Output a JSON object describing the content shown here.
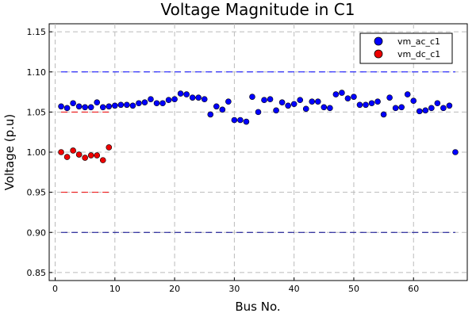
{
  "chart_data": {
    "type": "scatter",
    "title": "Voltage Magnitude in C1",
    "xlabel": "Bus No.",
    "ylabel": "Voltage (p.u)",
    "xlim": [
      -1,
      69
    ],
    "ylim": [
      0.84,
      1.16
    ],
    "xticks": [
      "0",
      "10",
      "20",
      "30",
      "40",
      "50",
      "60"
    ],
    "xtick_values": [
      0,
      10,
      20,
      30,
      40,
      50,
      60
    ],
    "yticks": [
      "0.85",
      "0.90",
      "0.95",
      "1.00",
      "1.05",
      "1.10",
      "1.15"
    ],
    "ytick_values": [
      0.85,
      0.9,
      0.95,
      1.0,
      1.05,
      1.1,
      1.15
    ],
    "grid": true,
    "legend_position": "top-right",
    "series": [
      {
        "name": "vm_ac_c1",
        "color": "#0000ff",
        "x": [
          1,
          2,
          3,
          4,
          5,
          6,
          7,
          8,
          9,
          10,
          11,
          12,
          13,
          14,
          15,
          16,
          17,
          18,
          19,
          20,
          21,
          22,
          23,
          24,
          25,
          26,
          27,
          28,
          29,
          30,
          31,
          32,
          33,
          34,
          35,
          36,
          37,
          38,
          39,
          40,
          41,
          42,
          43,
          44,
          45,
          46,
          47,
          48,
          49,
          50,
          51,
          52,
          53,
          54,
          55,
          56,
          57,
          58,
          59,
          60,
          61,
          62,
          63,
          64,
          65,
          66,
          67
        ],
        "y": [
          1.057,
          1.055,
          1.061,
          1.057,
          1.056,
          1.056,
          1.062,
          1.056,
          1.057,
          1.058,
          1.059,
          1.059,
          1.058,
          1.061,
          1.062,
          1.066,
          1.061,
          1.061,
          1.065,
          1.066,
          1.073,
          1.072,
          1.068,
          1.068,
          1.066,
          1.047,
          1.057,
          1.053,
          1.063,
          1.04,
          1.04,
          1.038,
          1.069,
          1.05,
          1.065,
          1.066,
          1.052,
          1.062,
          1.058,
          1.06,
          1.065,
          1.054,
          1.063,
          1.063,
          1.056,
          1.055,
          1.072,
          1.074,
          1.067,
          1.069,
          1.059,
          1.059,
          1.061,
          1.063,
          1.047,
          1.068,
          1.055,
          1.056,
          1.072,
          1.064,
          1.051,
          1.052,
          1.055,
          1.061,
          1.055,
          1.058,
          1.0
        ]
      },
      {
        "name": "vm_dc_c1",
        "color": "#ee0000",
        "x": [
          1,
          2,
          3,
          4,
          5,
          6,
          7,
          8,
          9
        ],
        "y": [
          1.0,
          0.994,
          1.002,
          0.997,
          0.993,
          0.996,
          0.996,
          0.99,
          1.006
        ]
      }
    ],
    "reference_lines": [
      {
        "color": "#0000ff",
        "y": 1.1,
        "x_from": 1,
        "x_to": 67
      },
      {
        "color": "#00008b",
        "y": 0.9,
        "x_from": 1,
        "x_to": 67
      },
      {
        "color": "#ee0000",
        "y": 1.05,
        "x_from": 1,
        "x_to": 9
      },
      {
        "color": "#ee0000",
        "y": 0.95,
        "x_from": 1,
        "x_to": 9
      }
    ]
  }
}
